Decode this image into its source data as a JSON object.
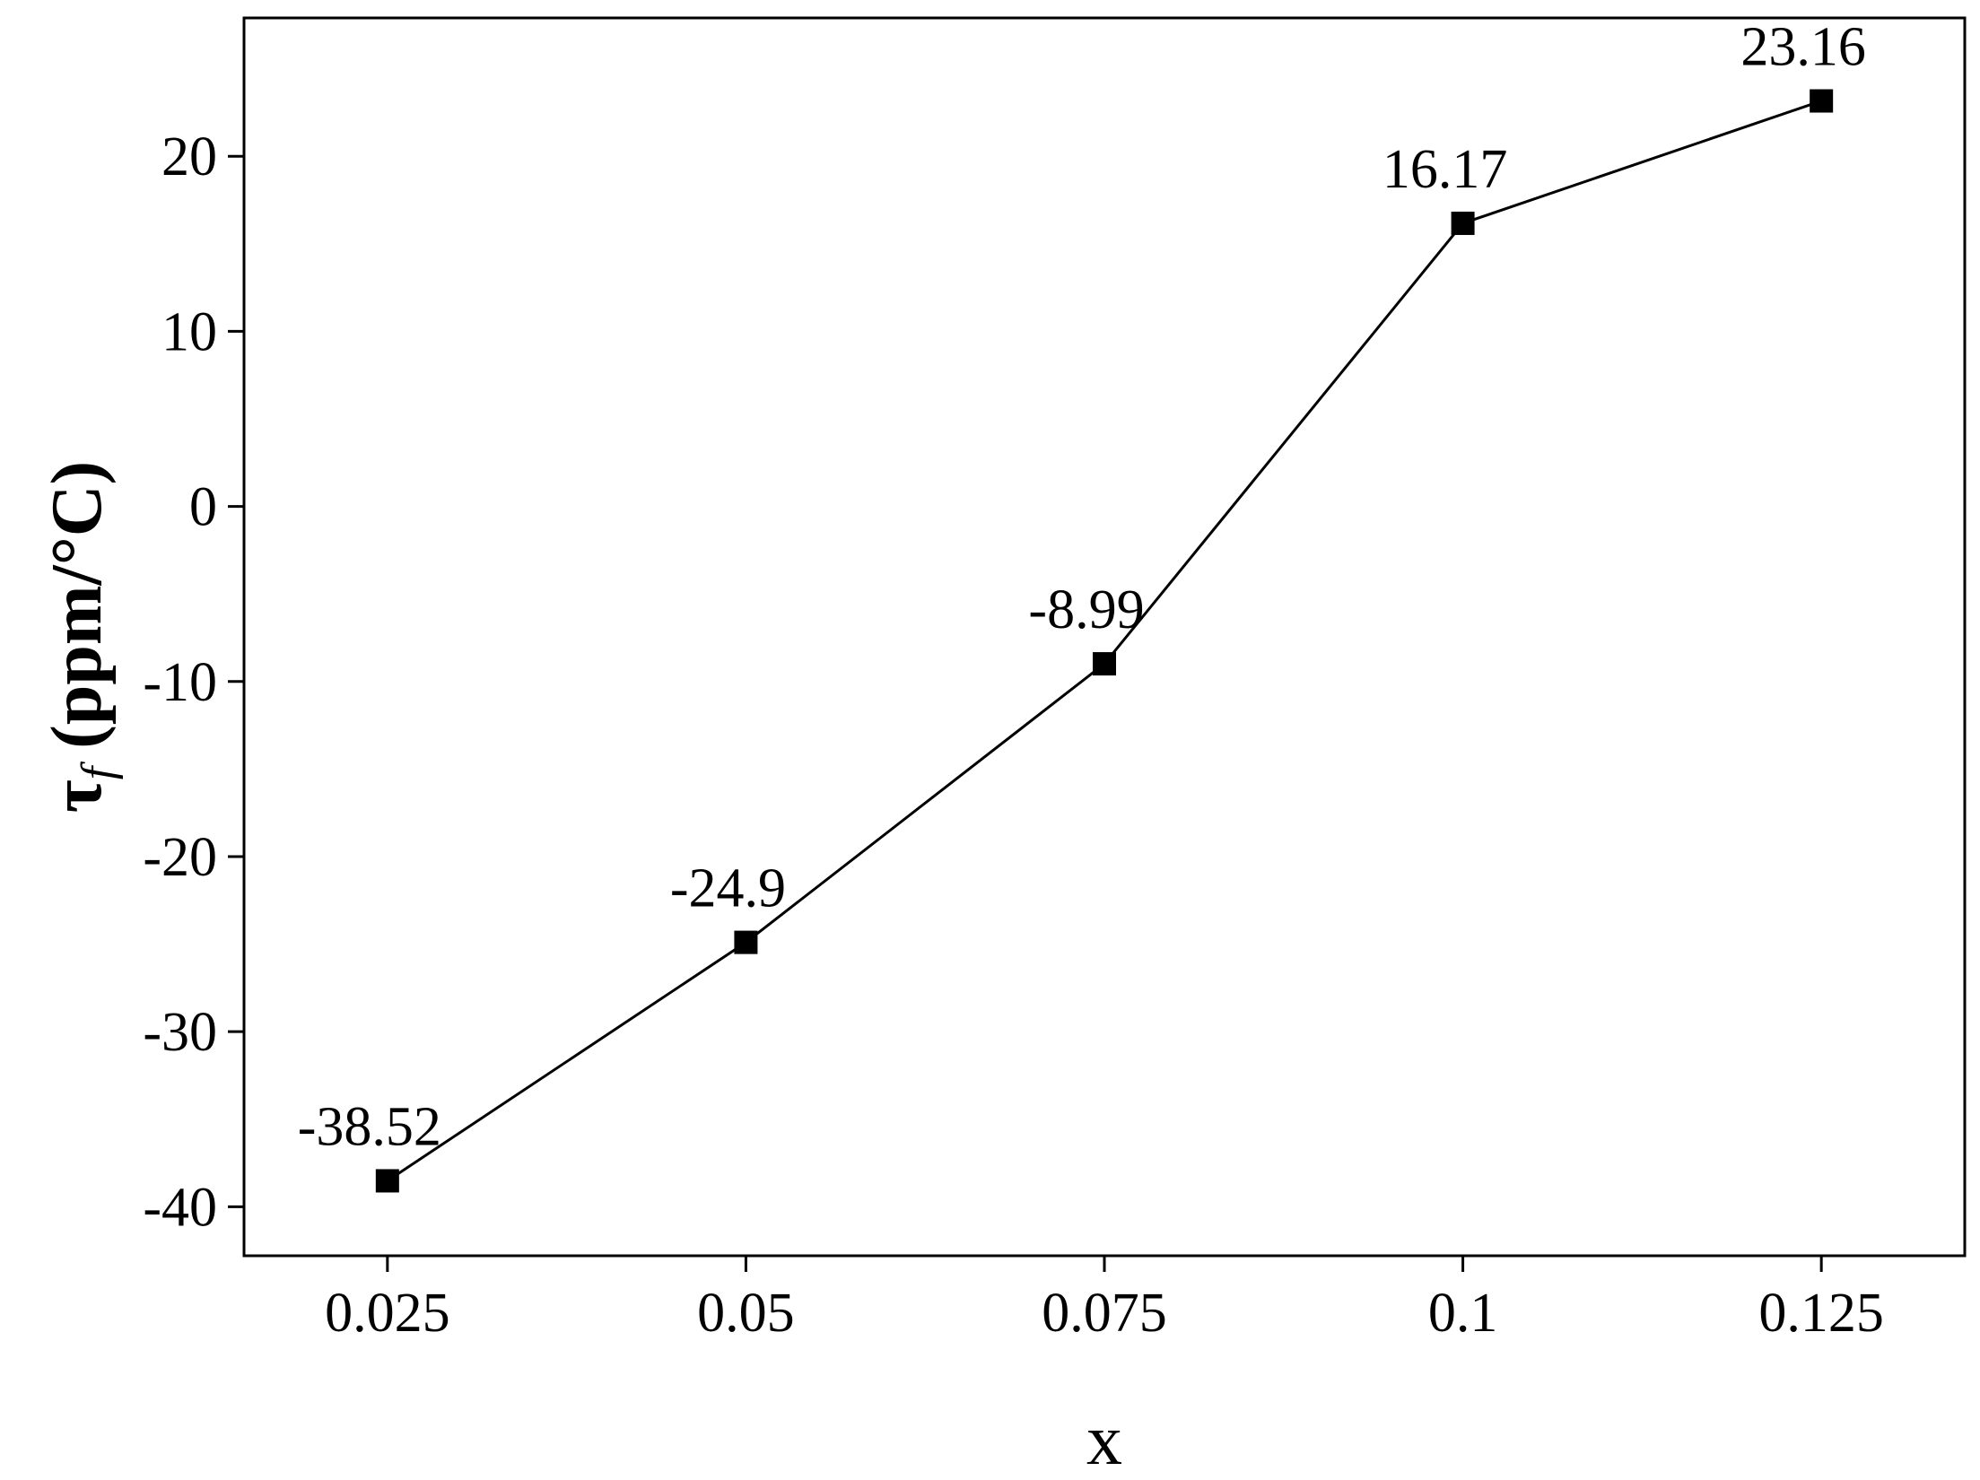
{
  "chart_data": {
    "type": "line",
    "title": "",
    "xlabel": "x",
    "ylabel": {
      "symbol": "τ",
      "subscript": "f",
      "unit": " (ppm/°C)"
    },
    "x": [
      0.025,
      0.05,
      0.075,
      0.1,
      0.125
    ],
    "x_tick_labels": [
      "0.025",
      "0.05",
      "0.075",
      "0.1",
      "0.125"
    ],
    "series": [
      {
        "values": [
          -38.52,
          -24.9,
          -8.99,
          16.17,
          23.16
        ],
        "data_labels": [
          "-38.52",
          "-24.9",
          "-8.99",
          "16.17",
          "23.16"
        ],
        "marker": "square",
        "color": "#000000"
      }
    ],
    "xlim": [
      0.015,
      0.135
    ],
    "ylim": [
      -42.8,
      27.9
    ],
    "y_ticks": [
      -40,
      -30,
      -20,
      -10,
      0,
      10,
      20
    ],
    "y_tick_labels": [
      "-40",
      "-30",
      "-20",
      "-10",
      "0",
      "10",
      "20"
    ],
    "grid": false,
    "legend": "none"
  }
}
